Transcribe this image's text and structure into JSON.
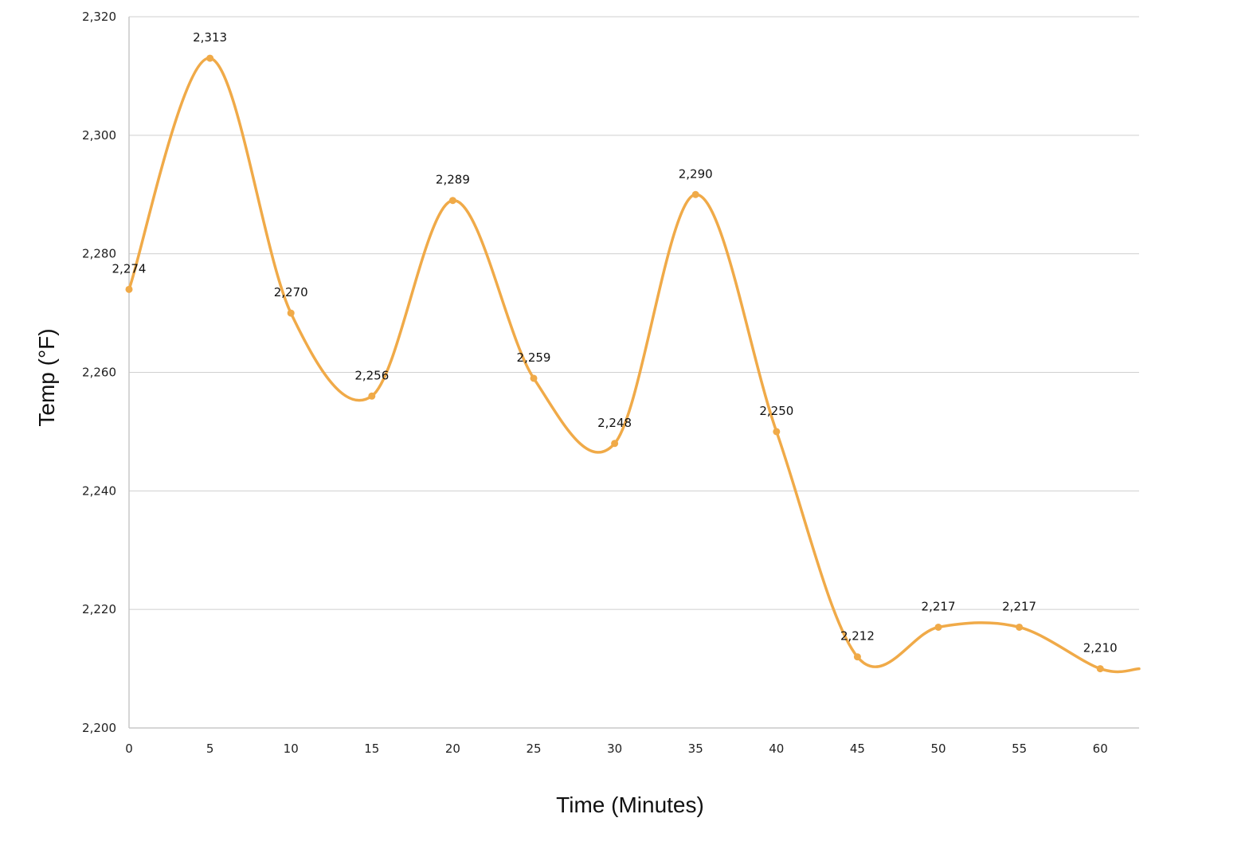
{
  "chart_data": {
    "type": "line",
    "smooth": true,
    "title": "",
    "xlabel": "Time (Minutes)",
    "ylabel": "Temp (°F)",
    "x": [
      0,
      5,
      10,
      15,
      20,
      25,
      30,
      35,
      40,
      45,
      50,
      55,
      60,
      62.4
    ],
    "x_ticks": [
      0,
      5,
      10,
      15,
      20,
      25,
      30,
      35,
      40,
      45,
      50,
      55,
      60
    ],
    "x_tick_labels": [
      "0",
      "5",
      "10",
      "15",
      "20",
      "25",
      "30",
      "35",
      "40",
      "45",
      "50",
      "55",
      "60"
    ],
    "xlim": [
      0,
      62.4
    ],
    "y_ticks": [
      2200,
      2220,
      2240,
      2260,
      2280,
      2300,
      2320
    ],
    "y_tick_labels": [
      "2,200",
      "2,220",
      "2,240",
      "2,260",
      "2,280",
      "2,300",
      "2,320"
    ],
    "ylim": [
      2200,
      2320
    ],
    "grid": true,
    "series": [
      {
        "values": [
          2274,
          2313,
          2270,
          2256,
          2289,
          2259,
          2248,
          2290,
          2250,
          2212,
          2217,
          2217,
          2210,
          2210
        ],
        "point_labels": [
          "2,274",
          "2,313",
          "2,270",
          "2,256",
          "2,289",
          "2,259",
          "2,248",
          "2,290",
          "2,250",
          "2,212",
          "2,217",
          "2,217",
          "2,210",
          ""
        ],
        "color": "#f0aa48"
      }
    ]
  }
}
